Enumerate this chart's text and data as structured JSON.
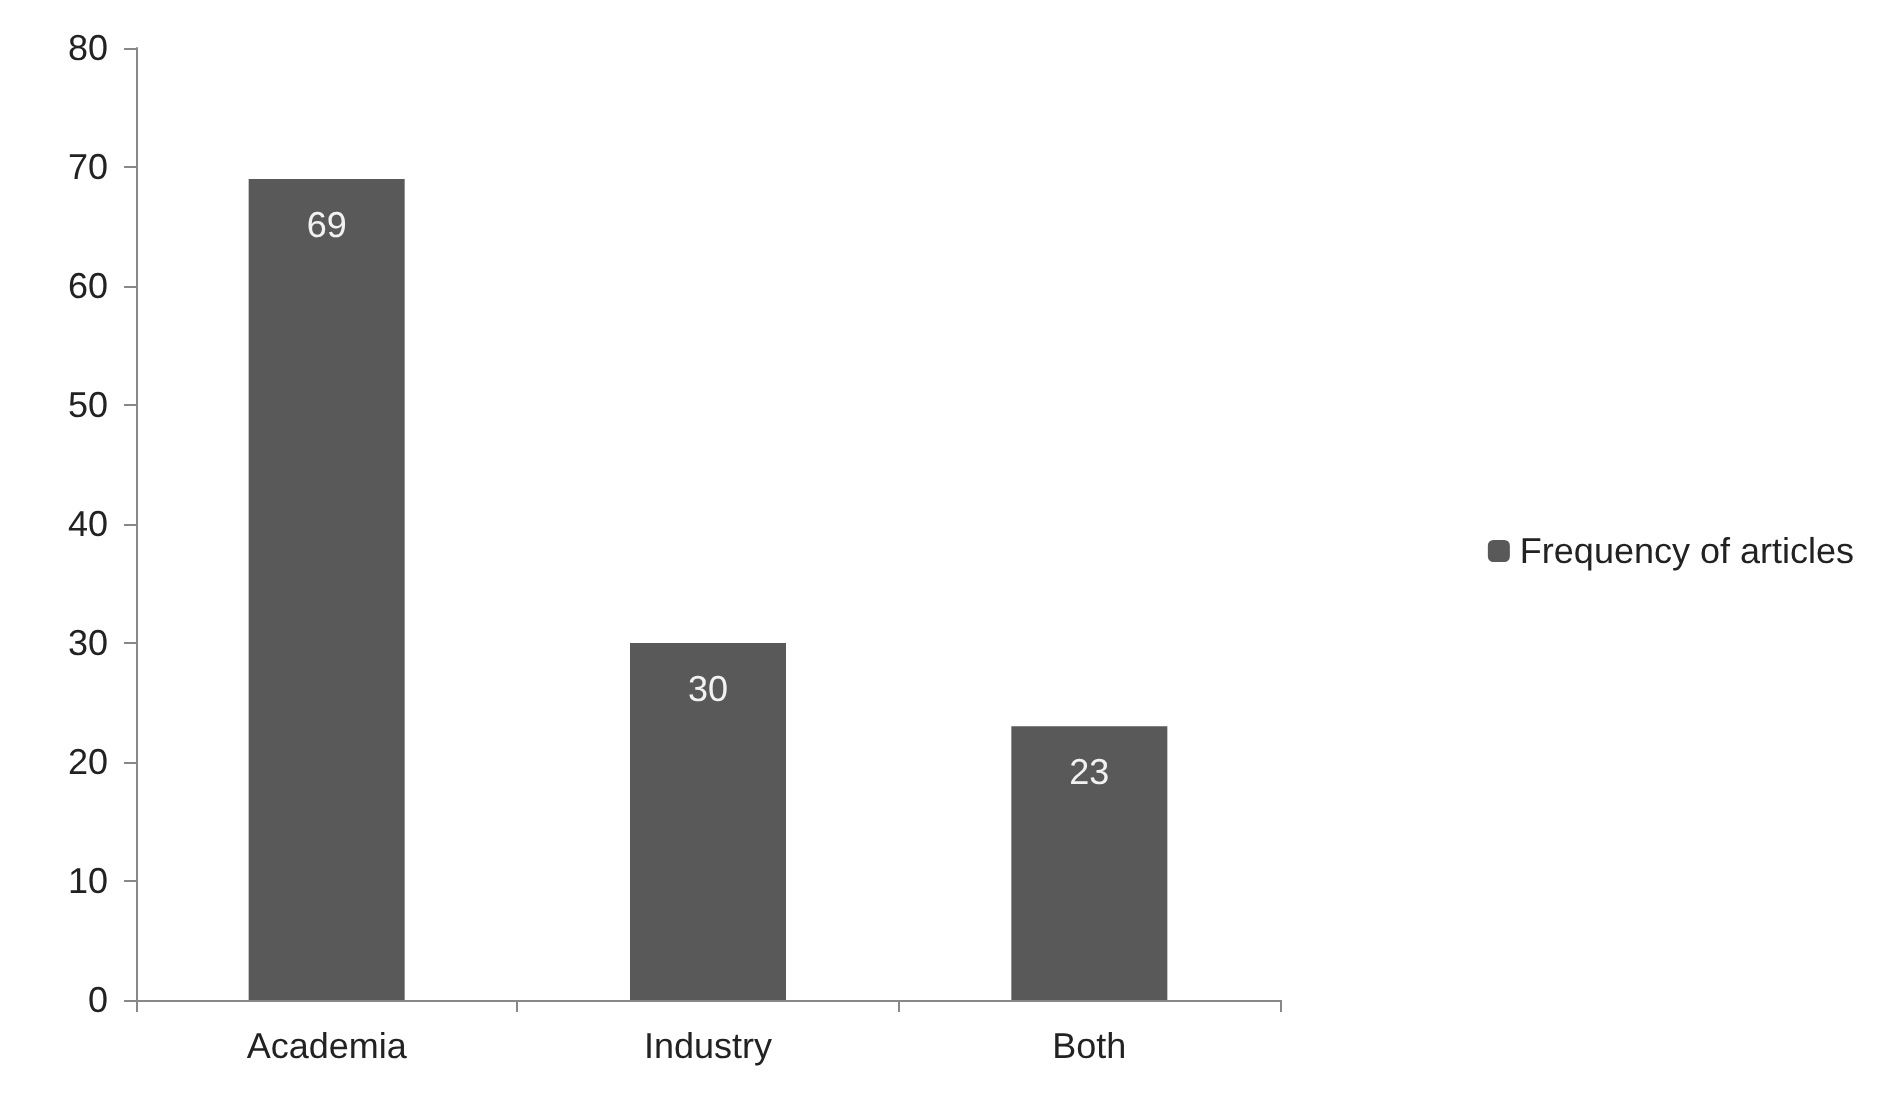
{
  "chart_data": {
    "type": "bar",
    "categories": [
      "Academia",
      "Industry",
      "Both"
    ],
    "series": [
      {
        "name": "Frequency of articles",
        "color": "#595959",
        "values": [
          69,
          30,
          23
        ]
      }
    ],
    "ylim": [
      0,
      80
    ],
    "yticks": [
      0,
      10,
      20,
      30,
      40,
      50,
      60,
      70,
      80
    ],
    "grid": false,
    "legend": "right",
    "data_labels": true
  }
}
